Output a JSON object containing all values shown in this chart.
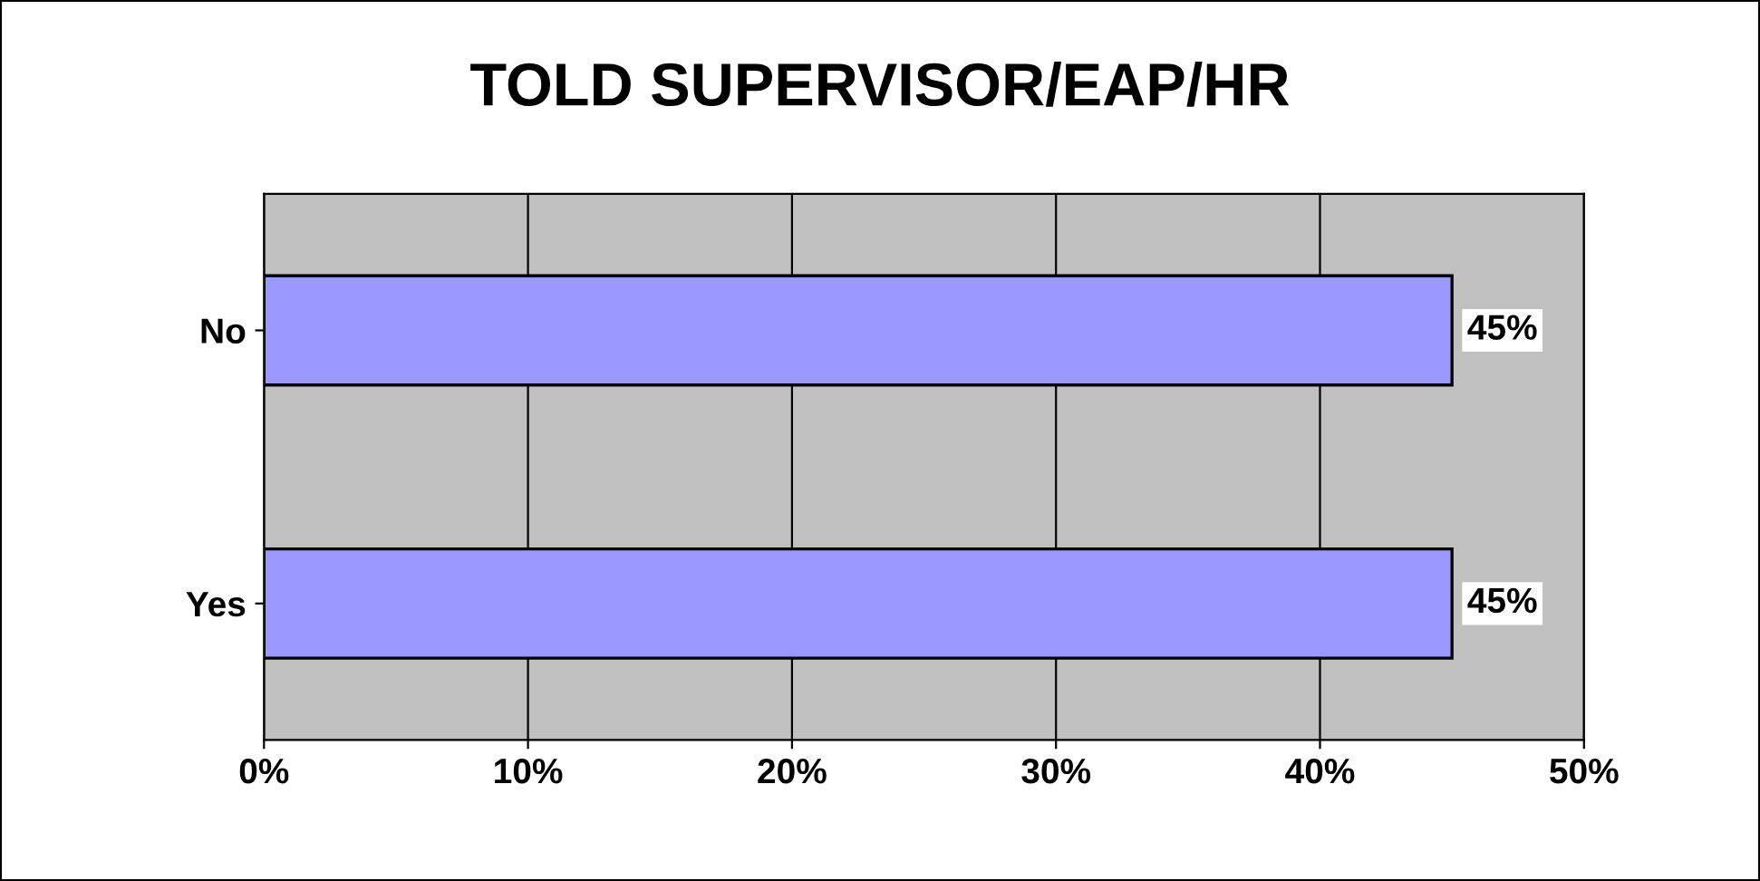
{
  "chart_data": {
    "type": "bar",
    "orientation": "horizontal",
    "title": "TOLD SUPERVISOR/EAP/HR",
    "categories": [
      "No",
      "Yes"
    ],
    "values": [
      45,
      45
    ],
    "color": "#9999ff",
    "value_labels": [
      "45%",
      "45%"
    ],
    "xlim": [
      0,
      50
    ],
    "xticks": [
      {
        "value": 0,
        "label": "0%"
      },
      {
        "value": 10,
        "label": "10%"
      },
      {
        "value": 20,
        "label": "20%"
      },
      {
        "value": 30,
        "label": "30%"
      },
      {
        "value": 40,
        "label": "40%"
      },
      {
        "value": 50,
        "label": "50%"
      }
    ],
    "grid": "x",
    "legend": false
  }
}
